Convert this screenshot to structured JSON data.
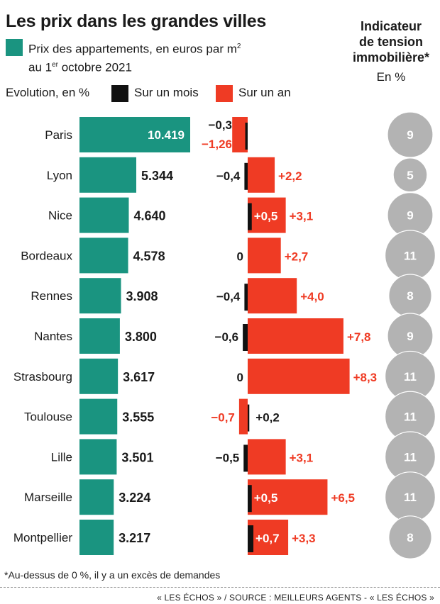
{
  "title": "Les prix dans les grandes villes",
  "legend": {
    "price_line1": "Prix des appartements, en euros par m",
    "price_sup2": "2",
    "price_line2_pre": "au 1",
    "price_line2_sup": "er",
    "price_line2_post": " octobre 2021",
    "evolution_label": "Evolution, en %",
    "month_label": "Sur un mois",
    "year_label": "Sur un an"
  },
  "indicator": {
    "title_line1": "Indicateur",
    "title_line2": "de tension",
    "title_line3": "immobilière*",
    "unit": "En %"
  },
  "colors": {
    "price": "#1a9480",
    "month": "#111111",
    "year": "#ef3b24",
    "indicator": "#b3b3b3",
    "negative_text": "#ef3b24"
  },
  "chart_data": {
    "type": "bar",
    "categories": [
      "Paris",
      "Lyon",
      "Nice",
      "Bordeaux",
      "Rennes",
      "Nantes",
      "Strasbourg",
      "Toulouse",
      "Lille",
      "Marseille",
      "Montpellier"
    ],
    "price": {
      "values": [
        10419,
        5344,
        4640,
        4578,
        3908,
        3800,
        3617,
        3555,
        3501,
        3224,
        3217
      ],
      "labels": [
        "10.419",
        "5.344",
        "4.640",
        "4.578",
        "3.908",
        "3.800",
        "3.617",
        "3.555",
        "3.501",
        "3.224",
        "3.217"
      ]
    },
    "month": {
      "values": [
        -0.3,
        -0.4,
        0.5,
        0,
        -0.4,
        -0.6,
        0,
        0.2,
        -0.5,
        0.5,
        0.7
      ],
      "labels": [
        "-0,3",
        "-0,4",
        "+0,5",
        "0",
        "-0,4",
        "-0,6",
        "0",
        "+0,2",
        "-0,5",
        "+0,5",
        "+0,7"
      ]
    },
    "year": {
      "values": [
        -1.26,
        2.2,
        3.1,
        2.7,
        4.0,
        7.8,
        8.3,
        -0.7,
        3.1,
        6.5,
        3.3
      ],
      "labels": [
        "-1,26",
        "+2,2",
        "+3,1",
        "+2,7",
        "+4,0",
        "+7,8",
        "+8,3",
        "-0,7",
        "+3,1",
        "+6,5",
        "+3,3"
      ]
    },
    "indicator": {
      "values": [
        9,
        5,
        9,
        11,
        8,
        9,
        11,
        11,
        11,
        11,
        8
      ],
      "labels": [
        "9",
        "5",
        "9",
        "11",
        "8",
        "9",
        "11",
        "11",
        "11",
        "11",
        "8"
      ]
    }
  },
  "footnote": "*Au-dessus de 0 %, il y a un excès de demandes",
  "source": "« LES ÉCHOS » / SOURCE : MEILLEURS AGENTS - « LES ÉCHOS »"
}
